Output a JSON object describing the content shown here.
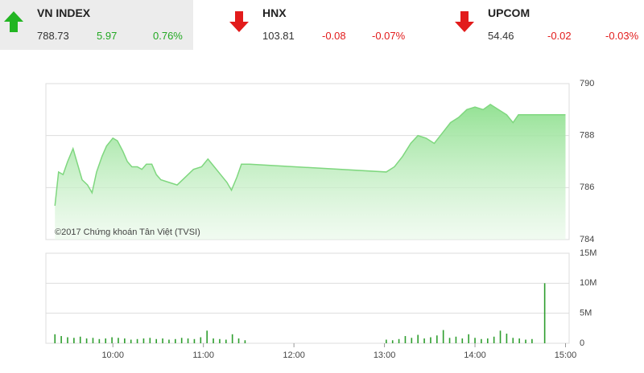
{
  "indices": [
    {
      "name": "VN INDEX",
      "value": "788.73",
      "change": "5.97",
      "percent": "0.76%"
    },
    {
      "name": "HNX",
      "value": "103.81",
      "change": "-0.08",
      "percent": "-0.07%"
    },
    {
      "name": "UPCOM",
      "value": "54.46",
      "change": "-0.02",
      "percent": "-0.03%"
    }
  ],
  "chart_data": [
    {
      "type": "area",
      "annotation": "©2017 Chứng khoán Tân Việt (TVSI)",
      "color": "#7fd77f",
      "x": [
        9.36,
        9.4,
        9.45,
        9.5,
        9.56,
        9.61,
        9.66,
        9.72,
        9.77,
        9.82,
        9.88,
        9.93,
        10.0,
        10.05,
        10.11,
        10.16,
        10.21,
        10.27,
        10.32,
        10.37,
        10.43,
        10.48,
        10.53,
        10.62,
        10.71,
        10.8,
        10.89,
        10.98,
        11.05,
        11.12,
        11.19,
        11.26,
        11.31,
        11.37,
        11.42,
        11.51,
        13.02,
        13.11,
        13.2,
        13.29,
        13.37,
        13.46,
        13.55,
        13.64,
        13.73,
        13.82,
        13.91,
        14.0,
        14.09,
        14.17,
        14.26,
        14.35,
        14.42,
        14.48,
        14.62,
        15.0
      ],
      "values": [
        785.3,
        786.6,
        786.5,
        787.0,
        787.5,
        786.9,
        786.3,
        786.1,
        785.8,
        786.6,
        787.2,
        787.6,
        787.9,
        787.8,
        787.4,
        787.0,
        786.8,
        786.8,
        786.7,
        786.9,
        786.9,
        786.5,
        786.3,
        786.2,
        786.1,
        786.4,
        786.7,
        786.8,
        787.1,
        786.8,
        786.5,
        786.2,
        785.9,
        786.4,
        786.9,
        786.9,
        786.6,
        786.8,
        787.2,
        787.7,
        788.0,
        787.9,
        787.7,
        788.1,
        788.5,
        788.7,
        789.0,
        789.1,
        789.0,
        789.2,
        789.0,
        788.8,
        788.5,
        788.8,
        788.8,
        788.8
      ],
      "xlim": [
        9.26,
        15.04
      ],
      "ylim": [
        784,
        790
      ],
      "yticks": [
        784,
        786,
        788,
        790
      ],
      "grid": true
    },
    {
      "type": "bar",
      "color": "#2e9e2e",
      "x": [
        9.36,
        9.43,
        9.5,
        9.57,
        9.64,
        9.71,
        9.78,
        9.85,
        9.92,
        9.99,
        10.06,
        10.13,
        10.2,
        10.27,
        10.34,
        10.41,
        10.48,
        10.55,
        10.62,
        10.69,
        10.76,
        10.83,
        10.9,
        10.97,
        11.04,
        11.11,
        11.18,
        11.25,
        11.32,
        11.39,
        11.46,
        13.02,
        13.09,
        13.16,
        13.23,
        13.3,
        13.37,
        13.44,
        13.51,
        13.58,
        13.65,
        13.72,
        13.79,
        13.86,
        13.93,
        14.0,
        14.07,
        14.14,
        14.21,
        14.28,
        14.35,
        14.42,
        14.49,
        14.56,
        14.63,
        14.77
      ],
      "values": [
        1500000,
        1200000,
        1000000,
        900000,
        1100000,
        800000,
        900000,
        700000,
        800000,
        1000000,
        900000,
        800000,
        600000,
        700000,
        800000,
        900000,
        700000,
        800000,
        600000,
        700000,
        900000,
        800000,
        700000,
        1000000,
        2100000,
        800000,
        700000,
        600000,
        1500000,
        800000,
        500000,
        600000,
        500000,
        700000,
        1200000,
        900000,
        1400000,
        800000,
        1000000,
        1300000,
        2200000,
        900000,
        1100000,
        800000,
        1500000,
        900000,
        700000,
        800000,
        1100000,
        2100000,
        1600000,
        900000,
        800000,
        600000,
        700000,
        10000000
      ],
      "xlim": [
        9.26,
        15.04
      ],
      "xticks": [
        {
          "value": 10,
          "label": "10:00"
        },
        {
          "value": 11,
          "label": "11:00"
        },
        {
          "value": 12,
          "label": "12:00"
        },
        {
          "value": 13,
          "label": "13:00"
        },
        {
          "value": 14,
          "label": "14:00"
        },
        {
          "value": 15,
          "label": "15:00"
        }
      ],
      "ylim": [
        0,
        15000000
      ],
      "yticks": [
        0,
        {
          "value": 5000000,
          "label": "5M"
        },
        {
          "value": 10000000,
          "label": "10M"
        },
        {
          "value": 15000000,
          "label": "15M"
        }
      ],
      "grid": true
    }
  ]
}
